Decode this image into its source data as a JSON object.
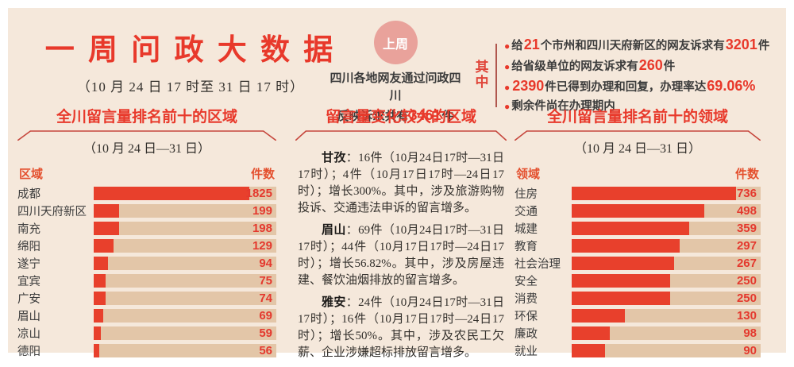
{
  "header": {
    "title": "一 周 问 政 大 数 据",
    "subtitle": "（10 月 24 日 17 时至 31 日 17 时）",
    "badge": "上周",
    "intro_line1": "四川各地网友通过问政四川",
    "intro_line2": [
      {
        "t": "反映诉求共有",
        "hl": false
      },
      {
        "t": "3461",
        "hl": true
      },
      {
        "t": "件",
        "hl": false
      }
    ],
    "among_label": "其中",
    "bullets": [
      {
        "segments": [
          {
            "t": "给",
            "hl": false
          },
          {
            "t": "21",
            "hl": true
          },
          {
            "t": "个市州和四川天府新区的网友诉求有",
            "hl": false
          },
          {
            "t": "3201",
            "hl": true
          },
          {
            "t": "件",
            "hl": false
          }
        ]
      },
      {
        "segments": [
          {
            "t": "给省级单位的网友诉求有",
            "hl": false
          },
          {
            "t": "260",
            "hl": true
          },
          {
            "t": "件",
            "hl": false
          }
        ]
      },
      {
        "segments": [
          {
            "t": "",
            "hl": false
          },
          {
            "t": "2390",
            "hl": true
          },
          {
            "t": "件已得到办理和回复，办理率达",
            "hl": false
          },
          {
            "t": "69.06%",
            "hl": true
          }
        ]
      },
      {
        "segments": [
          {
            "t": "剩余件尚在办理期内",
            "hl": false
          }
        ]
      }
    ]
  },
  "middle": {
    "title": "留言量变化较大的区域",
    "paragraphs": [
      {
        "lead": "甘孜",
        "text": "：16件（10月24日17时—31日17时）；4件（10月17日17时—24日17时）；增长300%。其中，涉及旅游购物投诉、交通违法申诉的留言增多。"
      },
      {
        "lead": "眉山",
        "text": "：69件（10月24日17时—31日17时）；44件（10月17日17时—24日17时）；增长56.82%。其中，涉及房屋违建、餐饮油烟排放的留言增多。"
      },
      {
        "lead": "雅安",
        "text": "：24件（10月24日17时—31日17时）；16件（10月17日17时—24日17时）；增长50%。其中，涉及农民工欠薪、企业涉嫌超标排放留言增多。"
      }
    ]
  },
  "chart_data": [
    {
      "type": "bar",
      "orientation": "horizontal",
      "title": "全川留言量排名前十的区域",
      "subtitle": "（10 月 24 日—31 日）",
      "col_label": "区域",
      "value_label": "件数",
      "categories": [
        "成都",
        "四川天府新区",
        "南充",
        "绵阳",
        "遂宁",
        "宜宾",
        "广安",
        "眉山",
        "凉山",
        "德阳"
      ],
      "values": [
        1825,
        199,
        198,
        129,
        94,
        75,
        74,
        69,
        59,
        56
      ],
      "xlim": [
        0,
        1825
      ],
      "bar_display_pct": [
        85,
        14,
        14,
        11,
        8,
        6.6,
        6.6,
        5,
        3.8,
        3.2
      ],
      "bar_color": "#e8402c",
      "track_color": "#e3c6a8"
    },
    {
      "type": "bar",
      "orientation": "horizontal",
      "title": "全川留言量排名前十的领域",
      "subtitle": "（10 月 24 日—31 日）",
      "col_label": "领域",
      "value_label": "件数",
      "categories": [
        "住房",
        "交通",
        "城建",
        "教育",
        "社会治理",
        "安全",
        "消费",
        "环保",
        "廉政",
        "就业"
      ],
      "values": [
        736,
        498,
        359,
        297,
        267,
        250,
        250,
        130,
        98,
        90
      ],
      "xlim": [
        0,
        736
      ],
      "bar_display_pct": [
        87,
        70,
        62,
        57,
        54,
        52,
        52,
        28,
        20,
        17.5
      ],
      "bar_color": "#e8402c",
      "track_color": "#e3c6a8"
    }
  ]
}
